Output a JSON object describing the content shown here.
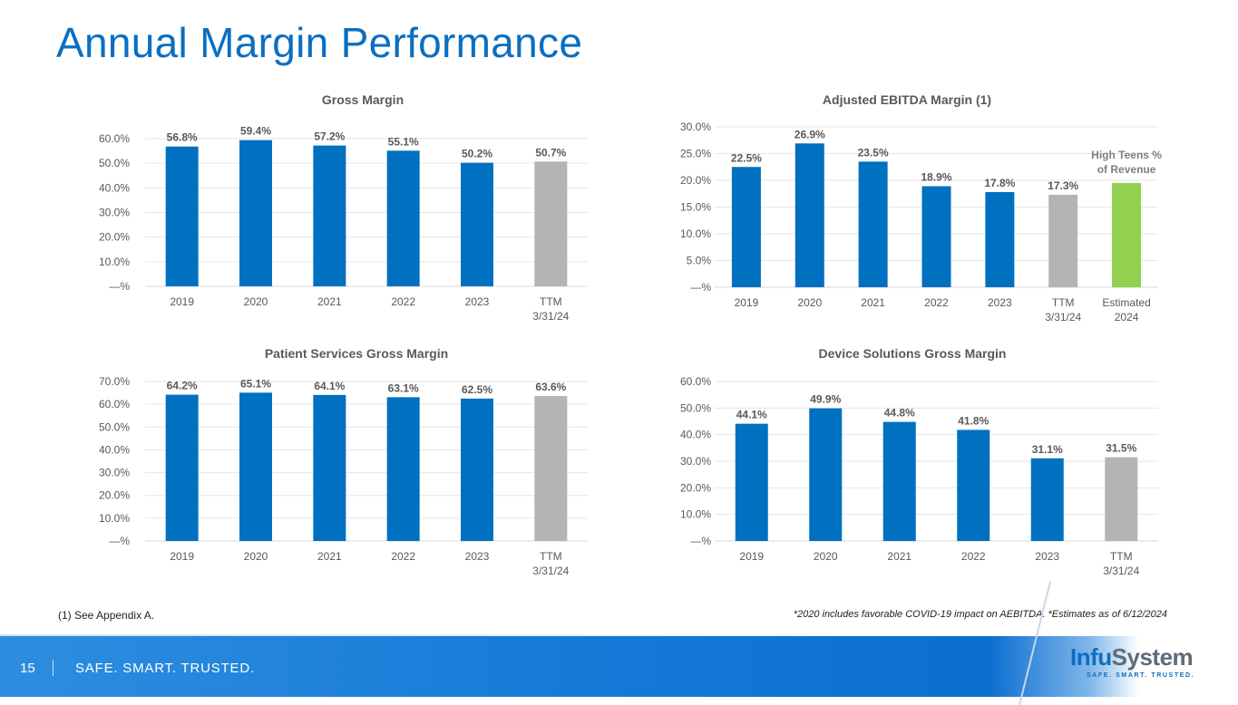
{
  "title": "Annual Margin Performance",
  "footnote_left": "(1) See Appendix A.",
  "footnote_right": "*2020 includes favorable COVID-19 impact on AEBITDA.   *Estimates as of 6/12/2024",
  "footer": {
    "page_number": "15",
    "tagline": "SAFE. SMART. TRUSTED."
  },
  "logo": {
    "text_a": "Infu",
    "text_b": "System",
    "tagline": "SAFE. SMART. TRUSTED."
  },
  "colors": {
    "actual": "#0070c0",
    "ttm": "#b4b4b4",
    "estimate": "#92d050",
    "title": "#0a6fc2"
  },
  "chart_data": [
    {
      "type": "bar",
      "title": "Gross Margin",
      "categories": [
        "2019",
        "2020",
        "2021",
        "2022",
        "2023",
        "TTM\n3/31/24"
      ],
      "values": [
        56.8,
        59.4,
        57.2,
        55.1,
        50.2,
        50.7
      ],
      "data_labels": [
        "56.8%",
        "59.4%",
        "57.2%",
        "55.1%",
        "50.2%",
        "50.7%"
      ],
      "bar_colors": [
        "#0070c0",
        "#0070c0",
        "#0070c0",
        "#0070c0",
        "#0070c0",
        "#b4b4b4"
      ],
      "ylim": [
        0,
        60
      ],
      "yticks": [
        "—%",
        "10.0%",
        "20.0%",
        "30.0%",
        "40.0%",
        "50.0%",
        "60.0%"
      ],
      "grid": true
    },
    {
      "type": "bar",
      "title": "Adjusted EBITDA Margin (1)",
      "categories": [
        "2019",
        "2020",
        "2021",
        "2022",
        "2023",
        "TTM\n3/31/24",
        "Estimated\n2024"
      ],
      "values": [
        22.5,
        26.9,
        23.5,
        18.9,
        17.8,
        17.3,
        19.5
      ],
      "data_labels": [
        "22.5%",
        "26.9%",
        "23.5%",
        "18.9%",
        "17.8%",
        "17.3%",
        ""
      ],
      "bar_colors": [
        "#0070c0",
        "#0070c0",
        "#0070c0",
        "#0070c0",
        "#0070c0",
        "#b4b4b4",
        "#92d050"
      ],
      "annotation": "High Teens %\nof Revenue",
      "ylim": [
        0,
        30
      ],
      "yticks": [
        "—%",
        "5.0%",
        "10.0%",
        "15.0%",
        "20.0%",
        "25.0%",
        "30.0%"
      ],
      "grid": true
    },
    {
      "type": "bar",
      "title": "Patient Services Gross Margin",
      "categories": [
        "2019",
        "2020",
        "2021",
        "2022",
        "2023",
        "TTM\n3/31/24"
      ],
      "values": [
        64.2,
        65.1,
        64.1,
        63.1,
        62.5,
        63.6
      ],
      "data_labels": [
        "64.2%",
        "65.1%",
        "64.1%",
        "63.1%",
        "62.5%",
        "63.6%"
      ],
      "bar_colors": [
        "#0070c0",
        "#0070c0",
        "#0070c0",
        "#0070c0",
        "#0070c0",
        "#b4b4b4"
      ],
      "ylim": [
        0,
        70
      ],
      "yticks": [
        "—%",
        "10.0%",
        "20.0%",
        "30.0%",
        "40.0%",
        "50.0%",
        "60.0%",
        "70.0%"
      ],
      "grid": true
    },
    {
      "type": "bar",
      "title": "Device Solutions Gross Margin",
      "categories": [
        "2019",
        "2020",
        "2021",
        "2022",
        "2023",
        "TTM\n3/31/24"
      ],
      "values": [
        44.1,
        49.9,
        44.8,
        41.8,
        31.1,
        31.5
      ],
      "data_labels": [
        "44.1%",
        "49.9%",
        "44.8%",
        "41.8%",
        "31.1%",
        "31.5%"
      ],
      "bar_colors": [
        "#0070c0",
        "#0070c0",
        "#0070c0",
        "#0070c0",
        "#0070c0",
        "#b4b4b4"
      ],
      "ylim": [
        0,
        60
      ],
      "yticks": [
        "—%",
        "10.0%",
        "20.0%",
        "30.0%",
        "40.0%",
        "50.0%",
        "60.0%"
      ],
      "grid": true
    }
  ]
}
